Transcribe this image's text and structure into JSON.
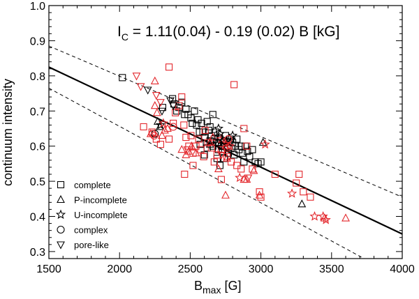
{
  "chart_data": {
    "type": "scatter",
    "title": "Ic = 1.11(0.04) - 0.19 (0.02) B [kG]",
    "title_parts": {
      "main": "I",
      "sub": "C",
      "rest": " = 1.11(0.04) - 0.19 (0.02) B [kG]"
    },
    "xlabel": {
      "main": "B",
      "sub": "max",
      "rest": " [G]"
    },
    "ylabel": "continuum intensity",
    "xlim": [
      1500,
      4000
    ],
    "ylim": [
      0.28,
      1.0
    ],
    "x_ticks": [
      1500,
      2000,
      2500,
      3000,
      3500,
      4000
    ],
    "y_ticks": [
      0.3,
      0.4,
      0.5,
      0.6,
      0.7,
      0.8,
      0.9,
      1.0
    ],
    "x_tick_labels": [
      "1500",
      "2000",
      "2500",
      "3000",
      "3500",
      "4000"
    ],
    "y_tick_labels": [
      "0.3",
      "0.4",
      "0.5",
      "0.6",
      "0.7",
      "0.8",
      "0.9",
      "1.0"
    ],
    "colors": {
      "black": "#000000",
      "red": "#e3262b"
    },
    "fit_line": {
      "intercept": 1.11,
      "slope_per_kG": -0.19,
      "x_range": [
        1500,
        4000
      ]
    },
    "envelope_lines": [
      {
        "name": "upper-bound",
        "points": [
          [
            1500,
            0.885
          ],
          [
            4000,
            0.455
          ]
        ]
      },
      {
        "name": "lower-bound",
        "points": [
          [
            1500,
            0.765
          ],
          [
            3730,
            0.28
          ]
        ]
      }
    ],
    "legend": [
      {
        "marker": "square",
        "label": "complete"
      },
      {
        "marker": "triangle",
        "label": "P-incomplete"
      },
      {
        "marker": "star",
        "label": "U-incomplete"
      },
      {
        "marker": "circle",
        "label": "complex"
      },
      {
        "marker": "down-triangle",
        "label": "pore-like"
      }
    ],
    "series": [
      {
        "name": "complete",
        "marker": "square",
        "color": "black",
        "points": [
          [
            2020,
            0.795
          ],
          [
            2305,
            0.71
          ],
          [
            2375,
            0.735
          ],
          [
            2385,
            0.72
          ],
          [
            2405,
            0.7
          ],
          [
            2420,
            0.71
          ],
          [
            2440,
            0.725
          ],
          [
            2460,
            0.69
          ],
          [
            2470,
            0.705
          ],
          [
            2485,
            0.69
          ],
          [
            2505,
            0.68
          ],
          [
            2515,
            0.665
          ],
          [
            2530,
            0.7
          ],
          [
            2545,
            0.66
          ],
          [
            2555,
            0.675
          ],
          [
            2565,
            0.64
          ],
          [
            2580,
            0.665
          ],
          [
            2590,
            0.64
          ],
          [
            2600,
            0.625
          ],
          [
            2620,
            0.67
          ],
          [
            2630,
            0.645
          ],
          [
            2640,
            0.615
          ],
          [
            2650,
            0.63
          ],
          [
            2660,
            0.6
          ],
          [
            2670,
            0.62
          ],
          [
            2680,
            0.64
          ],
          [
            2690,
            0.61
          ],
          [
            2700,
            0.59
          ],
          [
            2710,
            0.62
          ],
          [
            2720,
            0.6
          ],
          [
            2730,
            0.585
          ],
          [
            2740,
            0.61
          ],
          [
            2750,
            0.63
          ],
          [
            2760,
            0.6
          ],
          [
            2770,
            0.58
          ],
          [
            2780,
            0.62
          ],
          [
            2790,
            0.595
          ],
          [
            2800,
            0.61
          ],
          [
            2810,
            0.575
          ],
          [
            2820,
            0.6
          ],
          [
            2830,
            0.62
          ],
          [
            2845,
            0.59
          ],
          [
            2860,
            0.6
          ],
          [
            2870,
            0.58
          ],
          [
            2880,
            0.555
          ],
          [
            2890,
            0.6
          ],
          [
            2905,
            0.585
          ],
          [
            2920,
            0.57
          ],
          [
            2940,
            0.59
          ],
          [
            2960,
            0.555
          ],
          [
            2980,
            0.55
          ],
          [
            3000,
            0.555
          ],
          [
            2690,
            0.565
          ],
          [
            2710,
            0.545
          ],
          [
            2740,
            0.565
          ],
          [
            2600,
            0.575
          ],
          [
            2620,
            0.595
          ],
          [
            2570,
            0.605
          ],
          [
            2640,
            0.655
          ],
          [
            2660,
            0.69
          ]
        ]
      },
      {
        "name": "complete",
        "marker": "square",
        "color": "red",
        "points": [
          [
            2170,
            0.655
          ],
          [
            2230,
            0.64
          ],
          [
            2260,
            0.62
          ],
          [
            2290,
            0.605
          ],
          [
            2350,
            0.825
          ],
          [
            2380,
            0.665
          ],
          [
            2395,
            0.695
          ],
          [
            2420,
            0.715
          ],
          [
            2440,
            0.74
          ],
          [
            2455,
            0.66
          ],
          [
            2470,
            0.625
          ],
          [
            2490,
            0.6
          ],
          [
            2505,
            0.63
          ],
          [
            2520,
            0.58
          ],
          [
            2540,
            0.6
          ],
          [
            2560,
            0.62
          ],
          [
            2575,
            0.59
          ],
          [
            2595,
            0.57
          ],
          [
            2605,
            0.645
          ],
          [
            2625,
            0.61
          ],
          [
            2650,
            0.595
          ],
          [
            2670,
            0.555
          ],
          [
            2690,
            0.575
          ],
          [
            2720,
            0.59
          ],
          [
            2740,
            0.615
          ],
          [
            2760,
            0.57
          ],
          [
            2790,
            0.555
          ],
          [
            2810,
            0.775
          ],
          [
            2830,
            0.545
          ],
          [
            2860,
            0.535
          ],
          [
            2880,
            0.65
          ],
          [
            2900,
            0.6
          ],
          [
            2940,
            0.535
          ],
          [
            2990,
            0.47
          ],
          [
            3000,
            0.455
          ],
          [
            3100,
            0.52
          ],
          [
            3250,
            0.495
          ],
          [
            3270,
            0.52
          ],
          [
            3300,
            0.47
          ],
          [
            3350,
            0.455
          ],
          [
            2460,
            0.52
          ],
          [
            2350,
            0.62
          ],
          [
            2520,
            0.545
          ],
          [
            2720,
            0.505
          ]
        ]
      },
      {
        "name": "P-incomplete",
        "marker": "triangle",
        "color": "black",
        "points": [
          [
            2270,
            0.67
          ],
          [
            2285,
            0.655
          ],
          [
            2640,
            0.605
          ],
          [
            2700,
            0.61
          ],
          [
            3015,
            0.61
          ],
          [
            3290,
            0.435
          ]
        ]
      },
      {
        "name": "P-incomplete",
        "marker": "triangle",
        "color": "red",
        "points": [
          [
            2220,
            0.635
          ],
          [
            2250,
            0.785
          ],
          [
            2250,
            0.715
          ],
          [
            2265,
            0.695
          ],
          [
            2300,
            0.63
          ],
          [
            2320,
            0.645
          ],
          [
            2340,
            0.65
          ],
          [
            2440,
            0.59
          ],
          [
            2470,
            0.575
          ],
          [
            2490,
            0.585
          ],
          [
            2510,
            0.6
          ],
          [
            2540,
            0.58
          ],
          [
            2640,
            0.61
          ],
          [
            2660,
            0.625
          ],
          [
            2750,
            0.6
          ],
          [
            2760,
            0.565
          ],
          [
            2880,
            0.505
          ],
          [
            2900,
            0.505
          ],
          [
            2950,
            0.53
          ],
          [
            2990,
            0.46
          ],
          [
            2750,
            0.46
          ],
          [
            3450,
            0.395
          ],
          [
            3600,
            0.395
          ],
          [
            2700,
            0.535
          ]
        ]
      },
      {
        "name": "U-incomplete",
        "marker": "star",
        "color": "black",
        "points": [
          [
            2290,
            0.66
          ],
          [
            2700,
            0.65
          ],
          [
            2710,
            0.635
          ],
          [
            2760,
            0.615
          ],
          [
            2780,
            0.61
          ],
          [
            2800,
            0.63
          ]
        ]
      },
      {
        "name": "U-incomplete",
        "marker": "star",
        "color": "red",
        "points": [
          [
            2310,
            0.665
          ],
          [
            2720,
            0.62
          ],
          [
            2750,
            0.605
          ],
          [
            2780,
            0.6
          ],
          [
            2850,
            0.51
          ],
          [
            3030,
            0.605
          ],
          [
            3220,
            0.465
          ],
          [
            3380,
            0.4
          ],
          [
            3440,
            0.4
          ],
          [
            3460,
            0.39
          ]
        ]
      },
      {
        "name": "complex",
        "marker": "circle",
        "color": "black",
        "points": [
          [
            2250,
            0.635
          ],
          [
            2700,
            0.61
          ],
          [
            2700,
            0.625
          ],
          [
            2720,
            0.6
          ],
          [
            2740,
            0.615
          ]
        ]
      },
      {
        "name": "complex",
        "marker": "circle",
        "color": "red",
        "points": [
          [
            2235,
            0.635
          ],
          [
            2245,
            0.63
          ],
          [
            2380,
            0.655
          ],
          [
            2760,
            0.595
          ],
          [
            2770,
            0.62
          ]
        ]
      },
      {
        "name": "pore-like",
        "marker": "down-triangle",
        "color": "black",
        "points": [
          [
            2200,
            0.76
          ],
          [
            2300,
            0.7
          ],
          [
            2360,
            0.73
          ],
          [
            2380,
            0.715
          ]
        ]
      },
      {
        "name": "pore-like",
        "marker": "down-triangle",
        "color": "red",
        "points": [
          [
            2120,
            0.8
          ],
          [
            2150,
            0.77
          ],
          [
            2260,
            0.745
          ],
          [
            2290,
            0.725
          ],
          [
            2480,
            0.59
          ],
          [
            2720,
            0.575
          ],
          [
            2910,
            0.51
          ]
        ]
      }
    ]
  }
}
